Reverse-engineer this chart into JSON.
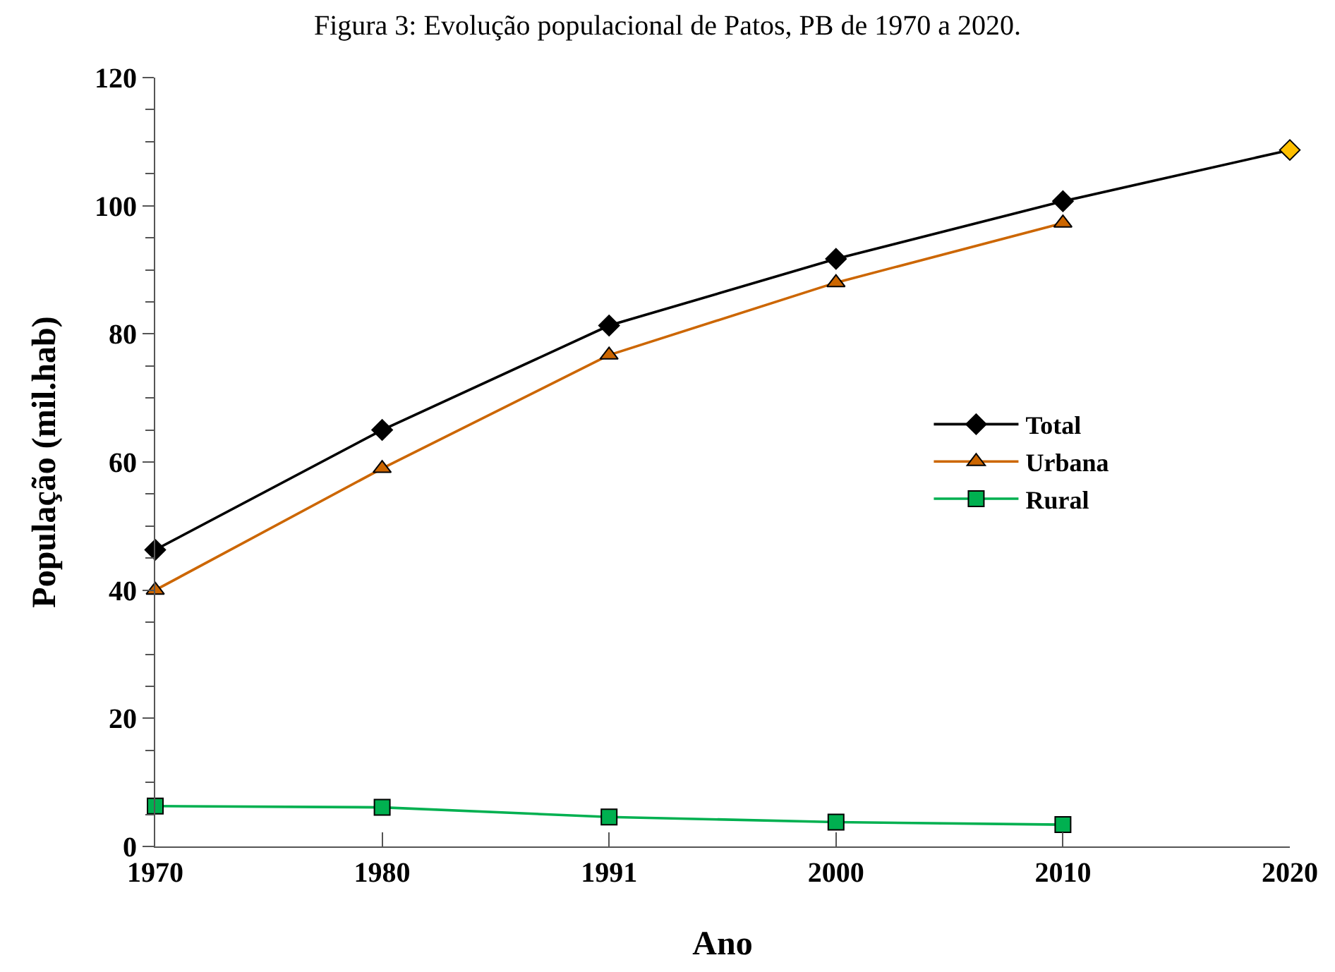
{
  "chart_data": {
    "type": "line",
    "title": "Figura 3: Evolução populacional de Patos, PB de 1970 a 2020.",
    "xlabel": "Ano",
    "ylabel": "População (mil.hab)",
    "categories": [
      "1970",
      "1980",
      "1991",
      "2000",
      "2010",
      "2020"
    ],
    "ylim": [
      0,
      120
    ],
    "yticks": [
      0,
      {
        "value": 5,
        "label": null
      },
      {
        "value": 10,
        "label": null
      },
      {
        "value": 15,
        "label": null
      },
      20,
      {
        "value": 25,
        "label": null
      },
      {
        "value": 30,
        "label": null
      },
      {
        "value": 35,
        "label": null
      },
      40,
      {
        "value": 45,
        "label": null
      },
      {
        "value": 50,
        "label": null
      },
      {
        "value": 55,
        "label": null
      },
      60,
      {
        "value": 65,
        "label": null
      },
      {
        "value": 70,
        "label": null
      },
      {
        "value": 75,
        "label": null
      },
      80,
      {
        "value": 85,
        "label": null
      },
      {
        "value": 90,
        "label": null
      },
      {
        "value": 95,
        "label": null
      },
      100,
      {
        "value": 105,
        "label": null
      },
      {
        "value": 110,
        "label": null
      },
      {
        "value": 115,
        "label": null
      },
      120
    ],
    "legend": "right",
    "series": [
      {
        "name": "Total",
        "color": "#000000",
        "colors": [
          "#000000",
          "#000000",
          "#000000",
          "#000000",
          "#000000",
          "#ffc000"
        ],
        "marker": "diamond",
        "values": [
          46.3,
          65.0,
          81.3,
          91.7,
          100.7,
          108.7
        ]
      },
      {
        "name": "Urbana",
        "color": "#cc6600",
        "marker": "triangle",
        "values": [
          40.0,
          59.0,
          76.7,
          88.0,
          97.3,
          null
        ]
      },
      {
        "name": "Rural",
        "color": "#00b050",
        "marker": "square",
        "values": [
          6.3,
          6.1,
          4.6,
          3.8,
          3.4,
          null
        ]
      }
    ]
  }
}
